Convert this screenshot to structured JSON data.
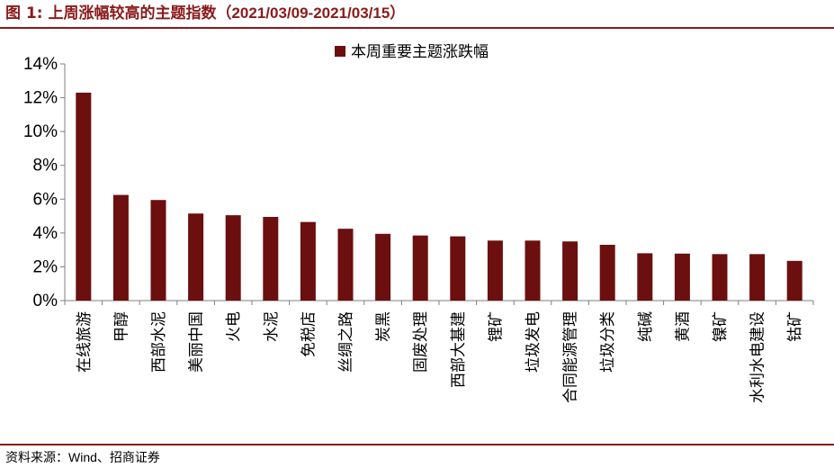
{
  "header": {
    "title_prefix": "图 1:",
    "title_text": "上周涨幅较高的主题指数（",
    "title_dates": "2021/03/09-2021/03/15",
    "title_suffix": "）"
  },
  "footer": {
    "source_prefix": "资料来源：",
    "source_text": "Wind、招商证券"
  },
  "colors": {
    "accent": "#8B1A1A",
    "bar": "#6B0F0F"
  },
  "chart_data": {
    "type": "bar",
    "categories": [
      "在线旅游",
      "甲醇",
      "西部水泥",
      "美丽中国",
      "火电",
      "水泥",
      "免税店",
      "丝绸之路",
      "炭黑",
      "固废处理",
      "西部大基建",
      "锂矿",
      "垃圾发电",
      "合同能源管理",
      "垃圾分类",
      "纯碱",
      "黄酒",
      "镍矿",
      "水利水电建设",
      "钴矿"
    ],
    "series": [
      {
        "name": "本周重要主题涨跌幅",
        "values": [
          12.3,
          6.25,
          5.95,
          5.15,
          5.05,
          4.95,
          4.65,
          4.25,
          3.95,
          3.85,
          3.8,
          3.55,
          3.55,
          3.5,
          3.3,
          2.8,
          2.78,
          2.75,
          2.75,
          2.35
        ]
      }
    ],
    "yticks": [
      "0%",
      "2%",
      "4%",
      "6%",
      "8%",
      "10%",
      "12%",
      "14%"
    ],
    "ylim": [
      0,
      14
    ],
    "grid": false,
    "legend_position": "top-center",
    "title": "",
    "xlabel": "",
    "ylabel": ""
  }
}
